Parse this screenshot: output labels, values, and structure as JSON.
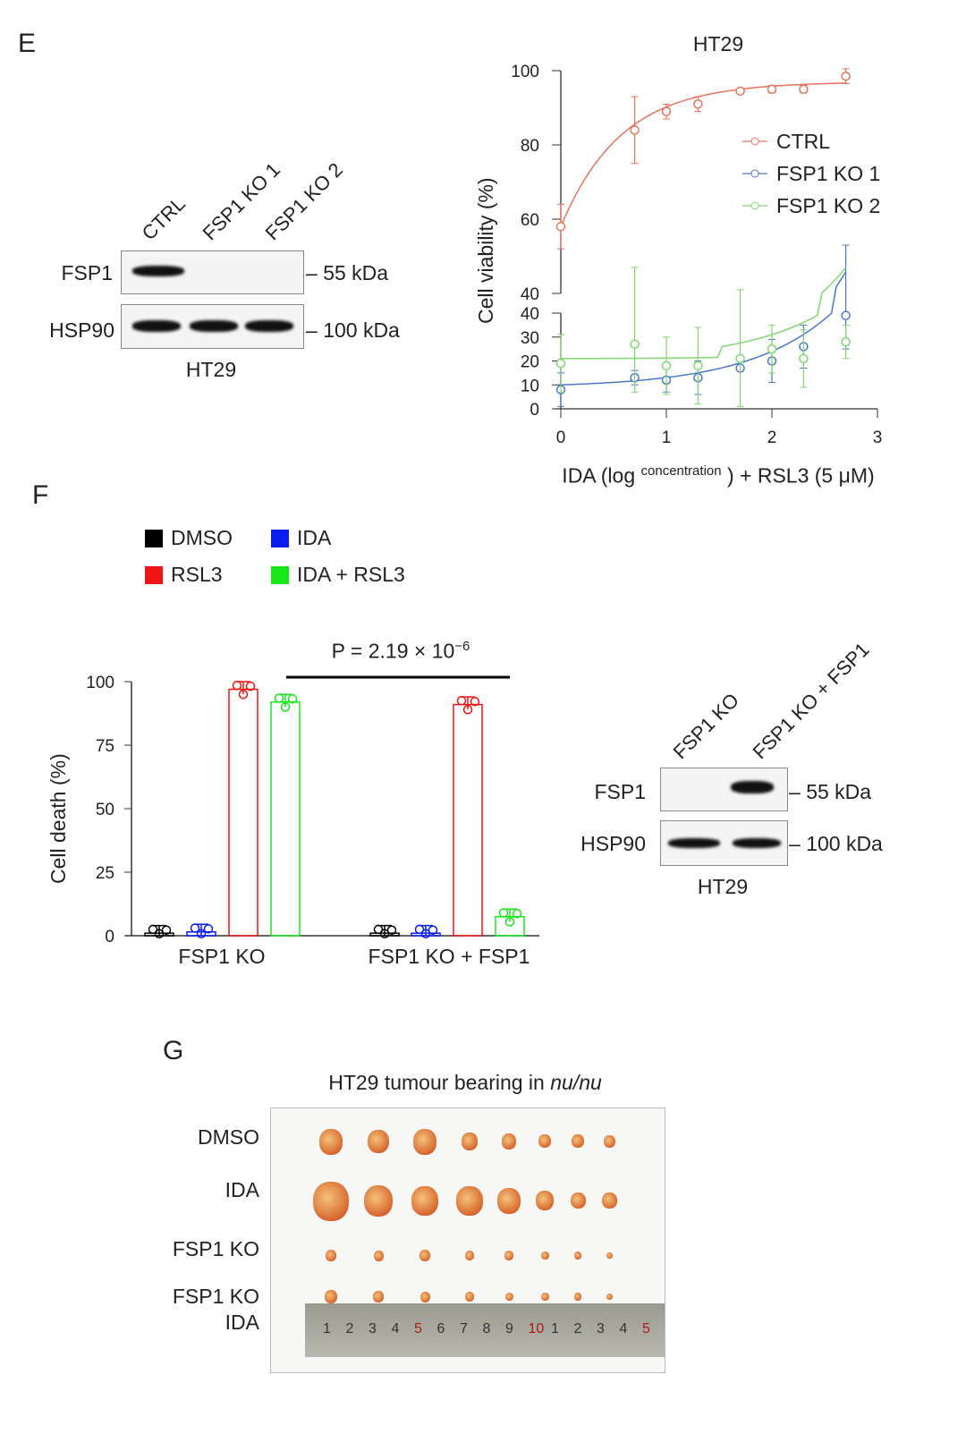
{
  "panels": {
    "e": "E",
    "f": "F",
    "g": "G"
  },
  "blot_e": {
    "lanes": [
      "CTRL",
      "FSP1 KO 1",
      "FSP1 KO 2"
    ],
    "rows": [
      {
        "label": "FSP1",
        "size": "55 kDa"
      },
      {
        "label": "HSP90",
        "size": "100 kDa"
      }
    ],
    "cell_line": "HT29"
  },
  "blot_f": {
    "lanes": [
      "FSP1 KO",
      "FSP1 KO + FSP1"
    ],
    "rows": [
      {
        "label": "FSP1",
        "size": "55 kDa"
      },
      {
        "label": "HSP90",
        "size": "100 kDa"
      }
    ],
    "cell_line": "HT29"
  },
  "chart_data": [
    {
      "type": "line",
      "title": "HT29",
      "ylabel": "Cell viability (%)",
      "xlabel_pre": "IDA (log",
      "xlabel_sup": "concentration",
      "xlabel_post": ") + RSL3 (5 μM)",
      "xlim": [
        0,
        3
      ],
      "xticks": [
        "0",
        "1",
        "2",
        "3"
      ],
      "ylim_upper": [
        40,
        100
      ],
      "yticks_upper": [
        "40",
        "60",
        "80",
        "100"
      ],
      "ylim_lower": [
        0,
        40
      ],
      "yticks_lower": [
        "0",
        "10",
        "20",
        "30",
        "40"
      ],
      "broken_axis": true,
      "legend": "top-right",
      "x": [
        0,
        0.7,
        1,
        1.3,
        1.7,
        2,
        2.3,
        2.7
      ],
      "series": [
        {
          "name": "CTRL",
          "color": "#e8735a",
          "values": [
            58,
            84,
            89,
            91,
            94.5,
            95,
            95,
            98.5
          ],
          "errors": [
            6,
            9,
            2,
            2,
            0.5,
            1,
            1,
            2
          ],
          "fit": [
            57,
            97,
            1.2
          ]
        },
        {
          "name": "FSP1 KO 1",
          "color": "#4a78c8",
          "values": [
            8,
            13,
            12,
            13,
            17,
            20,
            26,
            39
          ],
          "errors": [
            7,
            3,
            5,
            7,
            0,
            9,
            9,
            14
          ],
          "fit": "exp"
        },
        {
          "name": "FSP1 KO 2",
          "color": "#7fd86e",
          "values": [
            19,
            27,
            18,
            18,
            21,
            25,
            21,
            28
          ],
          "errors": [
            12,
            20,
            12,
            16,
            20,
            10,
            12,
            7
          ],
          "fit": "flat"
        }
      ]
    },
    {
      "type": "bar",
      "ylabel": "Cell death (%)",
      "ylim": [
        0,
        100
      ],
      "yticks": [
        "0",
        "25",
        "50",
        "75",
        "100"
      ],
      "categories": [
        "FSP1 KO",
        "FSP1 KO + FSP1"
      ],
      "legend": "top-left",
      "series": [
        {
          "name": "DMSO",
          "color": "#000000",
          "values": [
            1,
            1
          ]
        },
        {
          "name": "IDA",
          "color": "#0a1ef0",
          "values": [
            1.5,
            1
          ]
        },
        {
          "name": "RSL3",
          "color": "#f01414",
          "values": [
            97,
            91
          ]
        },
        {
          "name": "IDA + RSL3",
          "color": "#18e818",
          "values": [
            92,
            7.5
          ]
        }
      ],
      "annotation": {
        "text": "P = 2.19 × 10",
        "exp": "−6"
      }
    }
  ],
  "tumour": {
    "title": "HT29 tumour bearing in ",
    "title_italic": "nu/nu",
    "rows": [
      "DMSO",
      "IDA",
      "FSP1 KO",
      "FSP1 KO",
      "IDA"
    ],
    "ruler": [
      "1",
      "2",
      "3",
      "4",
      "5",
      "6",
      "7",
      "8",
      "9",
      "10",
      "1",
      "2",
      "3",
      "4",
      "5"
    ]
  }
}
